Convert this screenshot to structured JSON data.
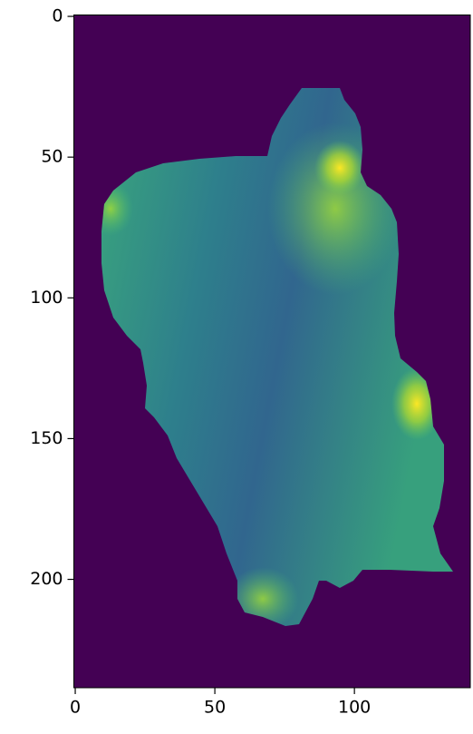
{
  "chart_data": {
    "type": "image",
    "xlim": [
      -0.5,
      141.5
    ],
    "ylim": [
      238.5,
      -0.5
    ],
    "xticks": [
      0,
      50,
      100
    ],
    "yticks": [
      0,
      50,
      100,
      150,
      200
    ],
    "background": "#440154"
  }
}
